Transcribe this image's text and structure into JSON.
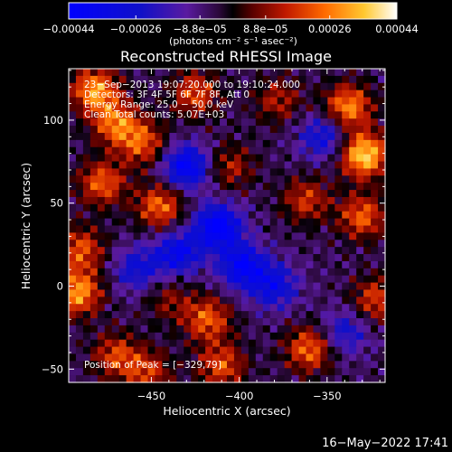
{
  "chart_data": {
    "type": "heatmap",
    "title": "Reconstructed RHESSI Image",
    "xlabel": "Heliocentric X (arcsec)",
    "ylabel": "Heliocentric Y (arcsec)",
    "xlim": [
      -497,
      -317
    ],
    "ylim": [
      -58,
      131
    ],
    "x_ticks": [
      -450,
      -400,
      -350
    ],
    "y_ticks": [
      -50,
      0,
      50,
      100
    ],
    "x_tick_labels": [
      "−450",
      "−400",
      "−350"
    ],
    "y_tick_labels": [
      "−50",
      "0",
      "50",
      "100"
    ],
    "colorbar": {
      "range": [
        -0.00044,
        0.00044
      ],
      "ticks": [
        -0.00044,
        -0.00026,
        -8.8e-05,
        8.8e-05,
        0.00026,
        0.00044
      ],
      "tick_labels": [
        "−0.00044",
        "−0.00026",
        "−8.8e−05",
        "8.8e−05",
        "0.00026",
        "0.00044"
      ],
      "unit_label": "(photons cm⁻² s⁻¹ asec⁻²)"
    },
    "info_lines": [
      "23−Sep−2013 19:07:20.000 to 19:10:24.000",
      "Detectors: 3F 4F 5F 6F 7F 8F, Att 0",
      "Energy Range: 25.0 − 50.0 keV",
      "Clean    Total counts: 5.07E+03"
    ],
    "peak_label": "Position of Peak = [−329,79]",
    "peak": [
      -329,
      79
    ],
    "hotspots": [
      {
        "x": -482,
        "y": 118,
        "value": 0.00036
      },
      {
        "x": -470,
        "y": 98,
        "value": 0.0003
      },
      {
        "x": -455,
        "y": 86,
        "value": 0.00026
      },
      {
        "x": -478,
        "y": 62,
        "value": 0.00028
      },
      {
        "x": -445,
        "y": 48,
        "value": 0.0003
      },
      {
        "x": -490,
        "y": 22,
        "value": 0.00026
      },
      {
        "x": -492,
        "y": -4,
        "value": 0.00036
      },
      {
        "x": -470,
        "y": -42,
        "value": 0.00024
      },
      {
        "x": -452,
        "y": -52,
        "value": 0.00022
      },
      {
        "x": -425,
        "y": 116,
        "value": 0.00026
      },
      {
        "x": -405,
        "y": 72,
        "value": 0.00018
      },
      {
        "x": -418,
        "y": -20,
        "value": 0.00028
      },
      {
        "x": -410,
        "y": -48,
        "value": 0.00026
      },
      {
        "x": -378,
        "y": 112,
        "value": 0.00018
      },
      {
        "x": -362,
        "y": 52,
        "value": 0.00022
      },
      {
        "x": -360,
        "y": -38,
        "value": 0.0003
      },
      {
        "x": -338,
        "y": 108,
        "value": 0.00034
      },
      {
        "x": -329,
        "y": 79,
        "value": 0.00044
      },
      {
        "x": -330,
        "y": 42,
        "value": 0.00028
      },
      {
        "x": -322,
        "y": -8,
        "value": 0.00024
      },
      {
        "x": -440,
        "y": -8,
        "value": 0.00014
      }
    ],
    "coldspots": [
      {
        "x": -430,
        "y": 72,
        "value": -0.00036
      },
      {
        "x": -412,
        "y": 36,
        "value": -0.0004
      },
      {
        "x": -398,
        "y": 12,
        "value": -0.00034
      },
      {
        "x": -435,
        "y": 20,
        "value": -0.0003
      },
      {
        "x": -380,
        "y": 0,
        "value": -0.00026
      },
      {
        "x": -352,
        "y": 90,
        "value": -0.00024
      },
      {
        "x": -458,
        "y": 10,
        "value": -0.00022
      },
      {
        "x": -340,
        "y": -28,
        "value": -0.0002
      }
    ]
  },
  "footer_timestamp": "16−May−2022 17:41"
}
